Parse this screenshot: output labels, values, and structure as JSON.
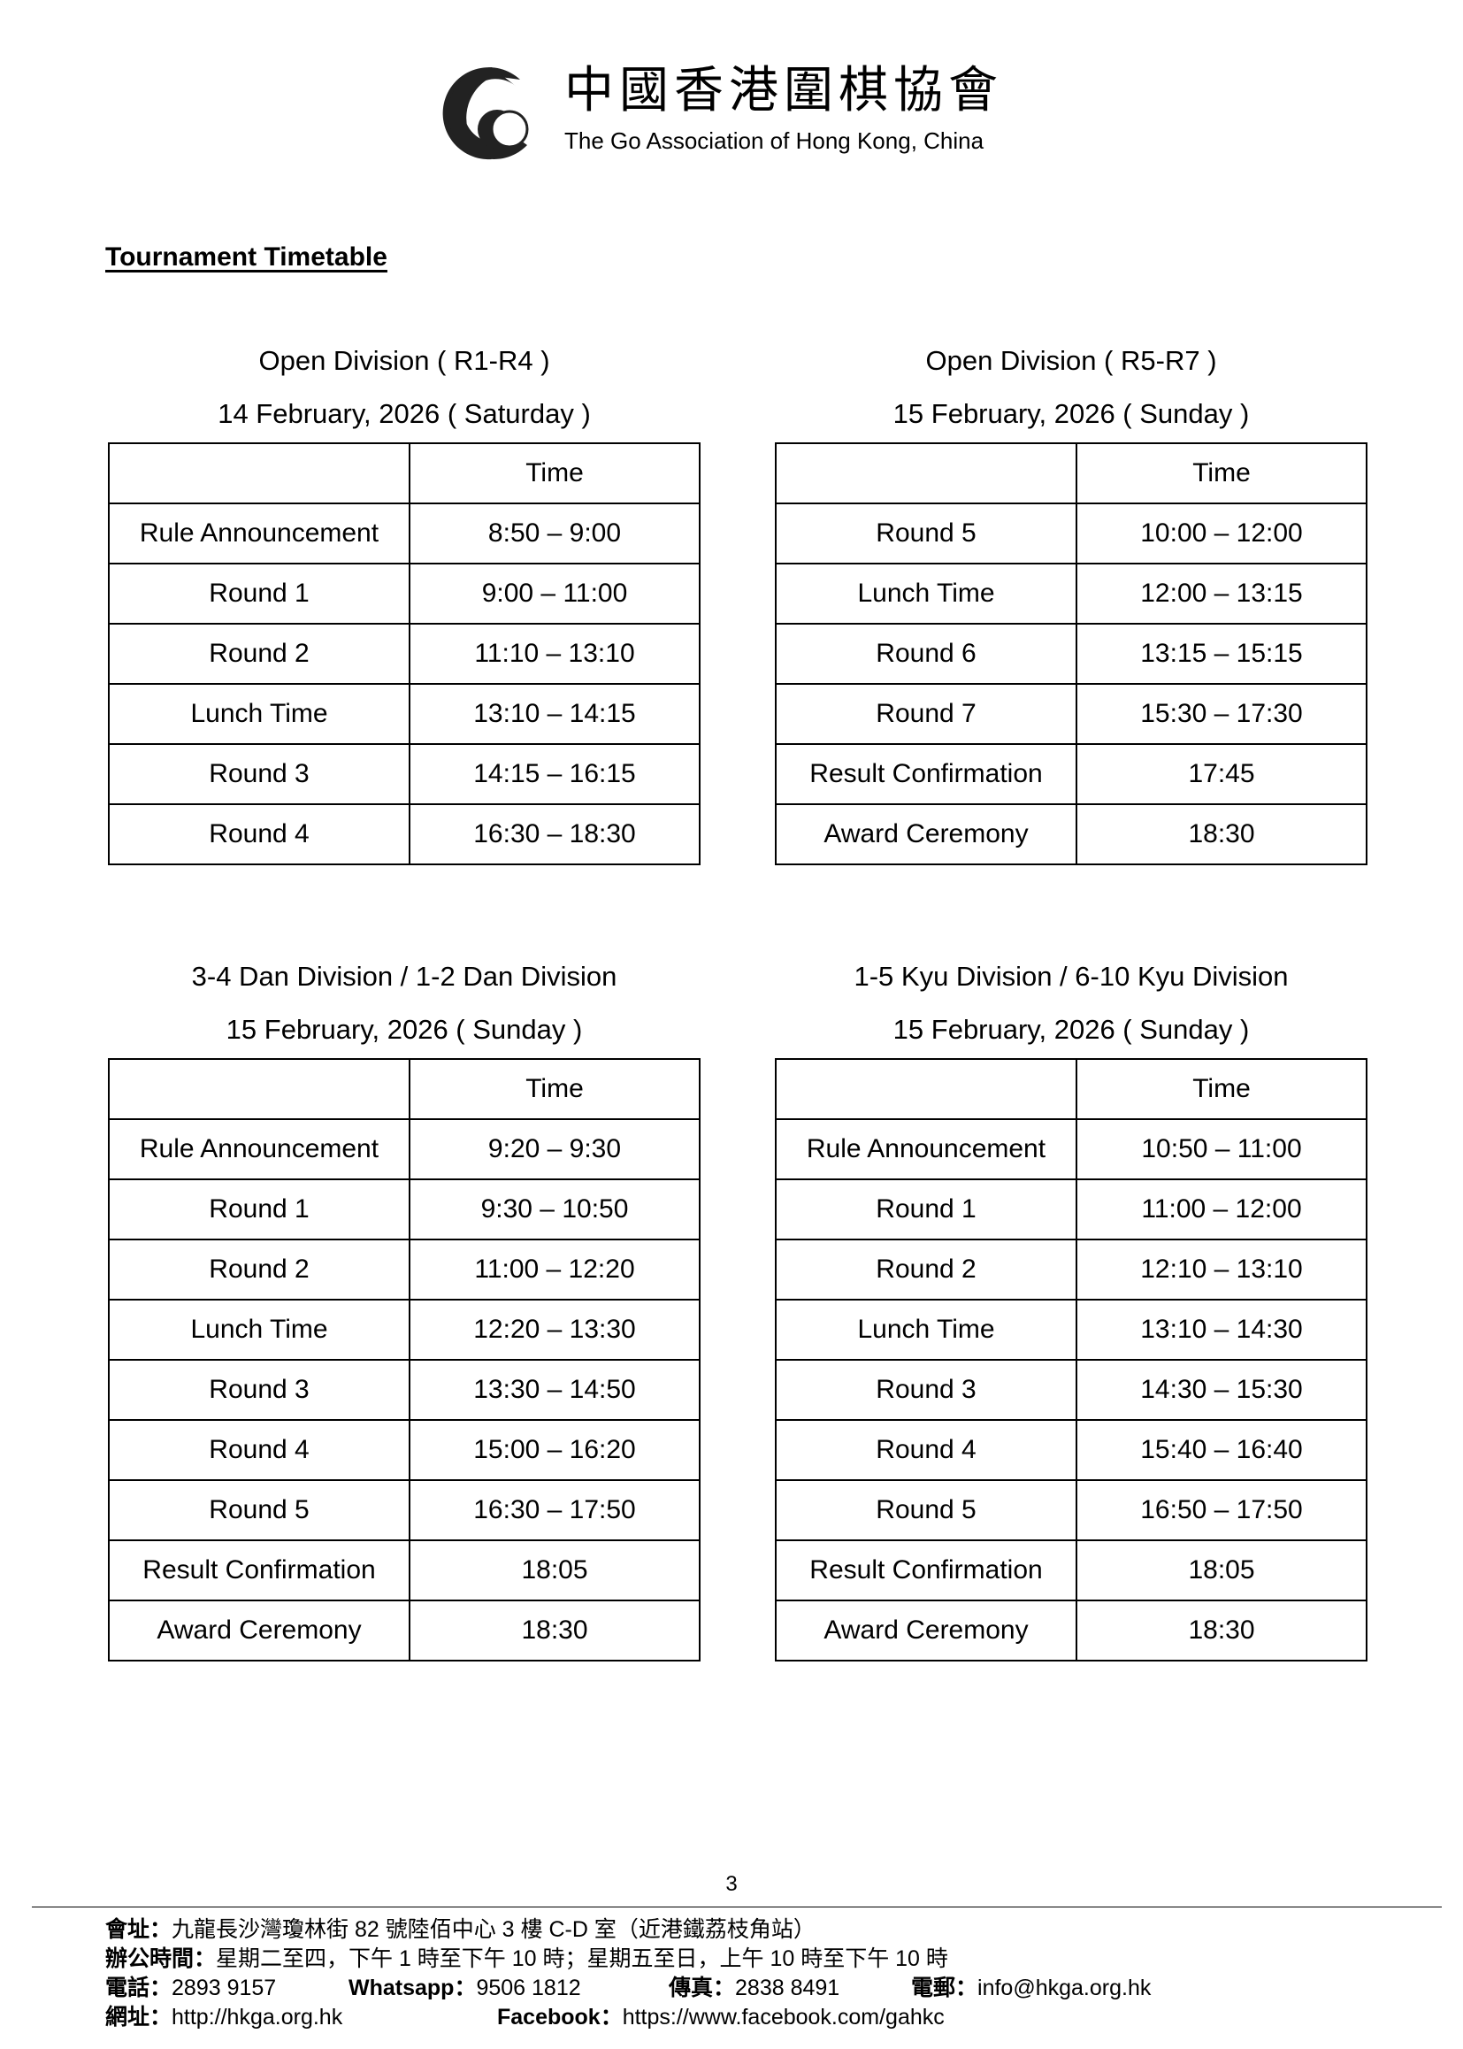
{
  "logo": {
    "name_zh": "中國香港圍棋協會",
    "name_en": "The Go Association of Hong Kong, China"
  },
  "heading": "Tournament Timetable",
  "time_header": "Time",
  "tables": [
    {
      "title": "Open Division ( R1-R4 )",
      "date": "14 February, 2026 ( Saturday )",
      "rows": [
        [
          "Rule Announcement",
          "8:50 – 9:00"
        ],
        [
          "Round 1",
          "9:00 – 11:00"
        ],
        [
          "Round 2",
          "11:10 – 13:10"
        ],
        [
          "Lunch Time",
          "13:10 – 14:15"
        ],
        [
          "Round 3",
          "14:15 – 16:15"
        ],
        [
          "Round 4",
          "16:30 – 18:30"
        ]
      ]
    },
    {
      "title": "Open Division ( R5-R7 )",
      "date": "15 February, 2026 ( Sunday )",
      "rows": [
        [
          "Round 5",
          "10:00 – 12:00"
        ],
        [
          "Lunch Time",
          "12:00 – 13:15"
        ],
        [
          "Round 6",
          "13:15 – 15:15"
        ],
        [
          "Round 7",
          "15:30 – 17:30"
        ],
        [
          "Result Confirmation",
          "17:45"
        ],
        [
          "Award Ceremony",
          "18:30"
        ]
      ]
    },
    {
      "title": "3-4 Dan Division / 1-2 Dan Division",
      "date": "15 February, 2026 ( Sunday )",
      "rows": [
        [
          "Rule Announcement",
          "9:20 – 9:30"
        ],
        [
          "Round 1",
          "9:30 – 10:50"
        ],
        [
          "Round 2",
          "11:00 – 12:20"
        ],
        [
          "Lunch Time",
          "12:20 – 13:30"
        ],
        [
          "Round 3",
          "13:30 – 14:50"
        ],
        [
          "Round 4",
          "15:00 – 16:20"
        ],
        [
          "Round 5",
          "16:30 – 17:50"
        ],
        [
          "Result Confirmation",
          "18:05"
        ],
        [
          "Award Ceremony",
          "18:30"
        ]
      ]
    },
    {
      "title": "1-5 Kyu Division / 6-10 Kyu Division",
      "date": "15 February, 2026 ( Sunday )",
      "rows": [
        [
          "Rule Announcement",
          "10:50 – 11:00"
        ],
        [
          "Round 1",
          "11:00 – 12:00"
        ],
        [
          "Round 2",
          "12:10 – 13:10"
        ],
        [
          "Lunch Time",
          "13:10 – 14:30"
        ],
        [
          "Round 3",
          "14:30 – 15:30"
        ],
        [
          "Round 4",
          "15:40 – 16:40"
        ],
        [
          "Round 5",
          "16:50 – 17:50"
        ],
        [
          "Result Confirmation",
          "18:05"
        ],
        [
          "Award Ceremony",
          "18:30"
        ]
      ]
    }
  ],
  "page_number": "3",
  "footer": {
    "address_label": "會址：",
    "address": "九龍長沙灣瓊林街 82 號陸佰中心 3 樓 C-D 室（近港鐵荔枝角站）",
    "hours_label": "辦公時間：",
    "hours": "星期二至四，下午 1 時至下午 10 時；星期五至日，上午 10 時至下午 10 時",
    "phone_label": "電話：",
    "phone": "2893 9157",
    "whatsapp_label": "Whatsapp：",
    "whatsapp": "9506 1812",
    "fax_label": "傳真：",
    "fax": "2838 8491",
    "email_label": "電郵：",
    "email": "info@hkga.org.hk",
    "web_label": "網址：",
    "web": "http://hkga.org.hk",
    "facebook_label": "Facebook：",
    "facebook": "https://www.facebook.com/gahkc"
  }
}
